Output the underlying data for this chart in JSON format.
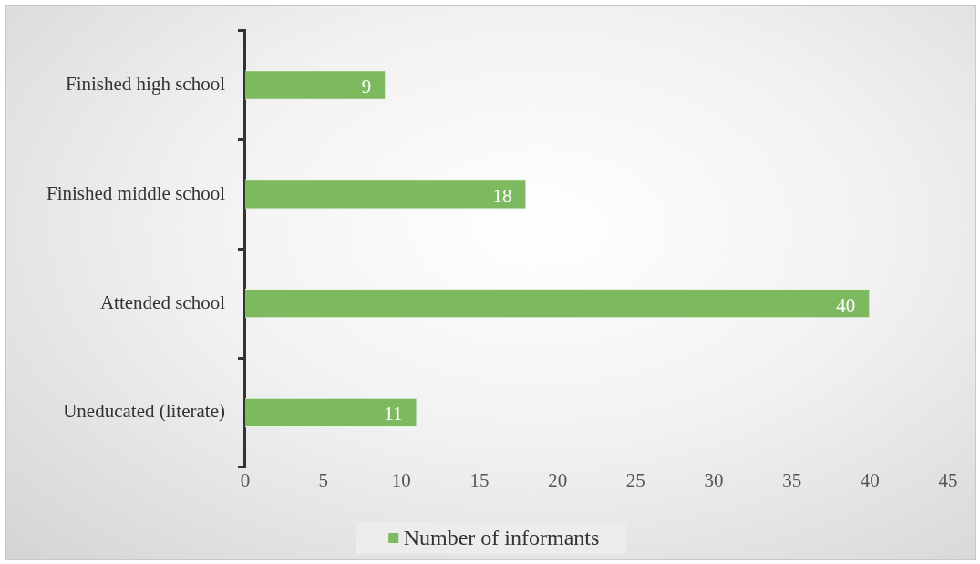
{
  "chart_data": {
    "type": "bar",
    "orientation": "horizontal",
    "categories": [
      "Finished high school",
      "Finished middle school",
      "Attended school",
      "Uneducated (literate)"
    ],
    "series": [
      {
        "name": "Number of informants",
        "color": "#7dba5f",
        "values": [
          9,
          18,
          40,
          11
        ]
      }
    ],
    "xlim": [
      0,
      45
    ],
    "xticks": [
      0,
      5,
      10,
      15,
      20,
      25,
      30,
      35,
      40,
      45
    ],
    "grid": false,
    "legend": "bottom",
    "data_labels": true
  }
}
